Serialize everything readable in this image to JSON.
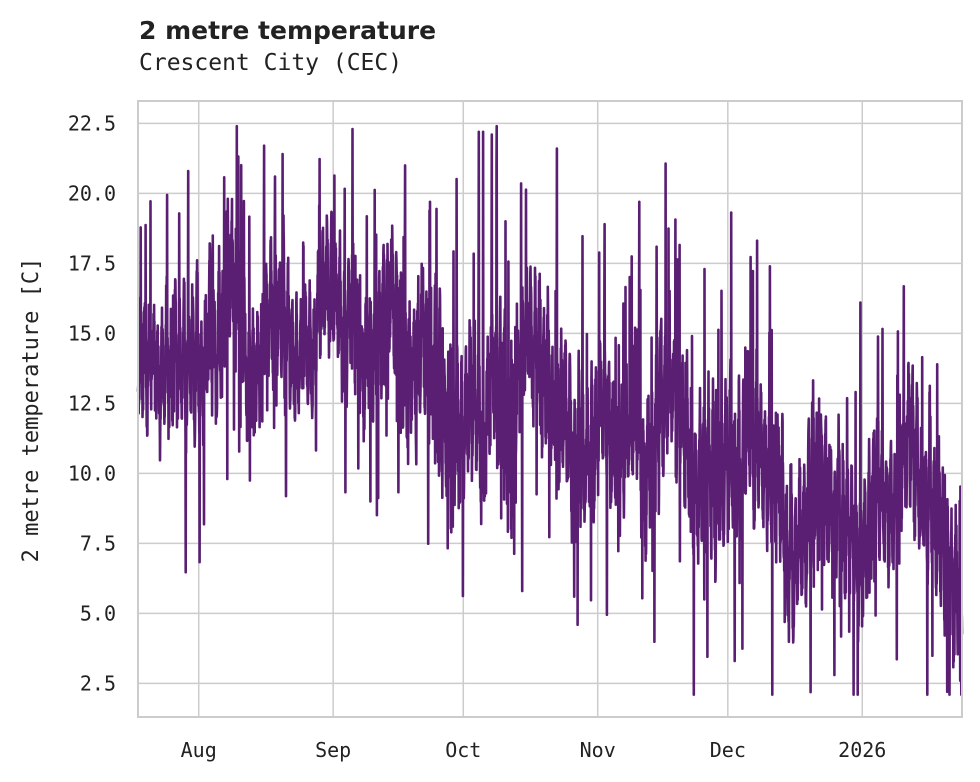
{
  "chart_data": {
    "type": "line",
    "title": "2 metre temperature",
    "subtitle": "Crescent City (CEC)",
    "xlabel": "",
    "ylabel": "2 metre temperature [C]",
    "x_start": "2025-07-18",
    "x_end": "2026-01-24",
    "ylim": [
      1.3,
      23.3
    ],
    "yticks": [
      2.5,
      5.0,
      7.5,
      10.0,
      12.5,
      15.0,
      17.5,
      20.0,
      22.5
    ],
    "ytick_labels": [
      "2.5",
      "5.0",
      "7.5",
      "10.0",
      "12.5",
      "15.0",
      "17.5",
      "20.0",
      "22.5"
    ],
    "xticks": [
      {
        "date": "2025-08-01",
        "label": "Aug"
      },
      {
        "date": "2025-09-01",
        "label": "Sep"
      },
      {
        "date": "2025-10-01",
        "label": "Oct"
      },
      {
        "date": "2025-11-01",
        "label": "Nov"
      },
      {
        "date": "2025-12-01",
        "label": "Dec"
      },
      {
        "date": "2026-01-01",
        "label": "2026"
      }
    ],
    "grid": true,
    "series": [
      {
        "name": "2 metre temperature",
        "color": "#5a1f73",
        "resolution": "hourly",
        "anchors": [
          {
            "date": "2025-07-18",
            "mean": 14.0,
            "spread": 1.8
          },
          {
            "date": "2025-08-05",
            "mean": 15.2,
            "spread": 2.0
          },
          {
            "date": "2025-08-25",
            "mean": 14.7,
            "spread": 1.8
          },
          {
            "date": "2025-09-10",
            "mean": 14.8,
            "spread": 1.9
          },
          {
            "date": "2025-09-25",
            "mean": 13.6,
            "spread": 2.3
          },
          {
            "date": "2025-10-10",
            "mean": 12.3,
            "spread": 2.4
          },
          {
            "date": "2025-10-25",
            "mean": 11.6,
            "spread": 2.2
          },
          {
            "date": "2025-11-10",
            "mean": 11.8,
            "spread": 2.0
          },
          {
            "date": "2025-11-25",
            "mean": 10.5,
            "spread": 2.2
          },
          {
            "date": "2025-12-10",
            "mean": 9.4,
            "spread": 2.2
          },
          {
            "date": "2025-12-25",
            "mean": 9.6,
            "spread": 2.1
          },
          {
            "date": "2026-01-10",
            "mean": 9.2,
            "spread": 2.1
          },
          {
            "date": "2026-01-24",
            "mean": 8.0,
            "spread": 2.4
          }
        ],
        "peaks": [
          {
            "date": "2025-07-29",
            "value": 20.8
          },
          {
            "date": "2025-08-18",
            "value": 20.6
          },
          {
            "date": "2025-09-17",
            "value": 21.0
          },
          {
            "date": "2025-09-28",
            "value": 22.2
          },
          {
            "date": "2025-10-04",
            "value": 22.2
          },
          {
            "date": "2025-10-05",
            "value": 22.2
          },
          {
            "date": "2025-10-07",
            "value": 22.1
          },
          {
            "date": "2025-10-22",
            "value": 21.6
          },
          {
            "date": "2025-11-02",
            "value": 18.9
          },
          {
            "date": "2025-11-10",
            "value": 19.7
          },
          {
            "date": "2025-12-31",
            "value": 16.1
          }
        ],
        "troughs": [
          {
            "date": "2025-08-07",
            "value": 9.8
          },
          {
            "date": "2025-09-09",
            "value": 9.0
          },
          {
            "date": "2025-09-28",
            "value": 8.1
          },
          {
            "date": "2025-10-14",
            "value": 5.8
          },
          {
            "date": "2025-10-26",
            "value": 5.6
          },
          {
            "date": "2025-11-25",
            "value": 5.5
          },
          {
            "date": "2025-12-02",
            "value": 3.3
          },
          {
            "date": "2025-12-25",
            "value": 2.8
          },
          {
            "date": "2026-01-20",
            "value": 2.2
          },
          {
            "date": "2026-01-23",
            "value": 2.6
          }
        ]
      }
    ]
  }
}
